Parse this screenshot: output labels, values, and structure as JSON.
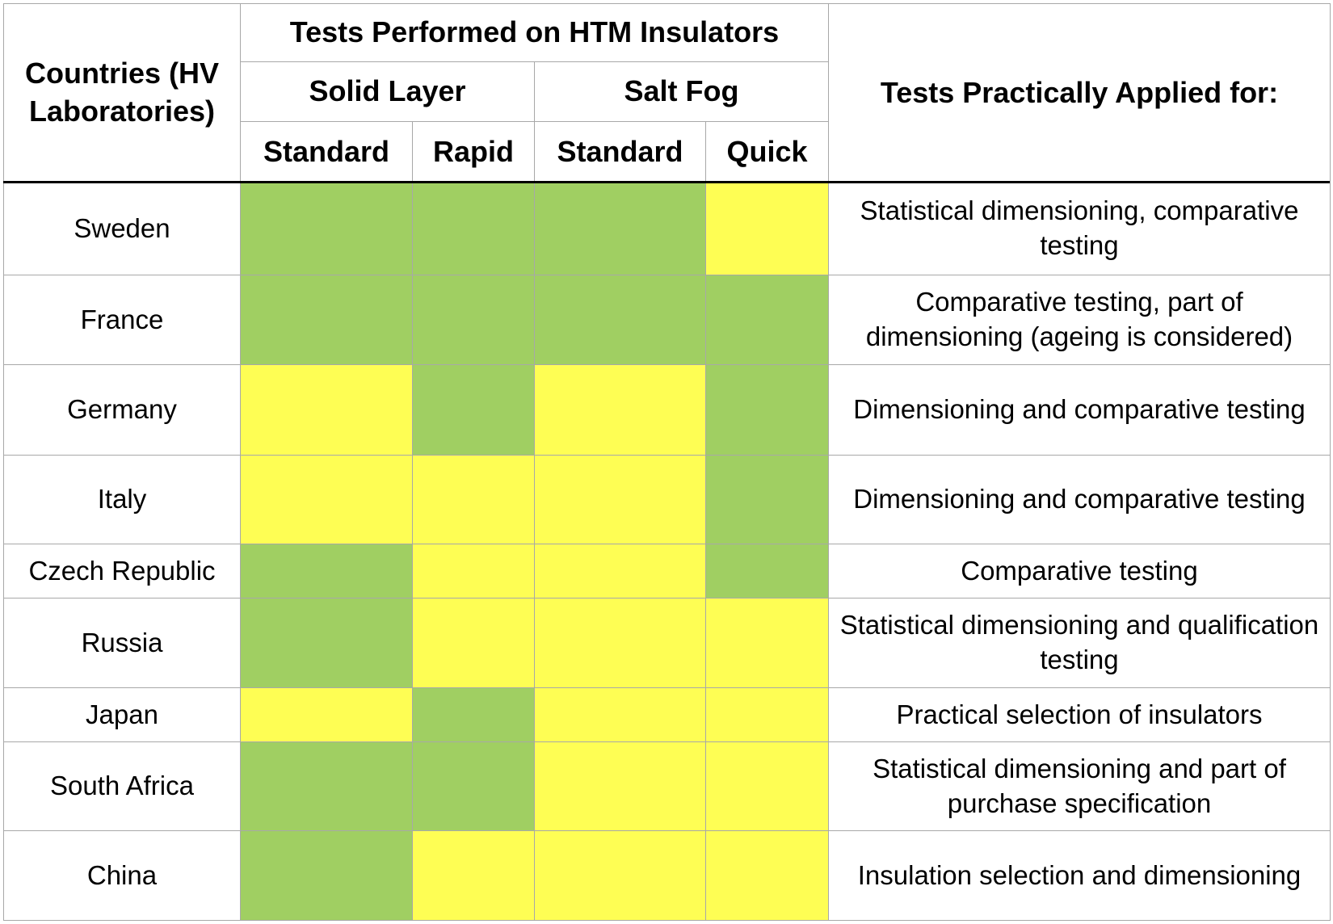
{
  "table": {
    "header": {
      "countries": "Countries (HV Laboratories)",
      "tests_performed": "Tests Performed on HTM Insulators",
      "solid_layer": "Solid Layer",
      "salt_fog": "Salt Fog",
      "subcolumns": [
        "Standard",
        "Rapid",
        "Standard",
        "Quick"
      ],
      "applied": "Tests Practically Applied for:"
    },
    "rows": [
      {
        "country": "Sweden",
        "cell_colors": [
          "#a0cf62",
          "#a0cf62",
          "#a0cf62",
          "#fefe54"
        ],
        "applied": "Statistical dimensioning, comparative testing"
      },
      {
        "country": "France",
        "cell_colors": [
          "#a0cf62",
          "#a0cf62",
          "#a0cf62",
          "#a0cf62"
        ],
        "applied": "Comparative testing, part of dimensioning (ageing is considered)"
      },
      {
        "country": "Germany",
        "cell_colors": [
          "#fefe54",
          "#a0cf62",
          "#fefe54",
          "#a0cf62"
        ],
        "applied": "Dimensioning and comparative testing"
      },
      {
        "country": "Italy",
        "cell_colors": [
          "#fefe54",
          "#fefe54",
          "#fefe54",
          "#a0cf62"
        ],
        "applied": "Dimensioning and comparative testing"
      },
      {
        "country": "Czech Republic",
        "cell_colors": [
          "#a0cf62",
          "#fefe54",
          "#fefe54",
          "#a0cf62"
        ],
        "applied": "Comparative testing"
      },
      {
        "country": "Russia",
        "cell_colors": [
          "#a0cf62",
          "#fefe54",
          "#fefe54",
          "#fefe54"
        ],
        "applied": "Statistical dimensioning and qualification testing"
      },
      {
        "country": "Japan",
        "cell_colors": [
          "#fefe54",
          "#a0cf62",
          "#fefe54",
          "#fefe54"
        ],
        "applied": "Practical selection of insulators"
      },
      {
        "country": "South Africa",
        "cell_colors": [
          "#a0cf62",
          "#a0cf62",
          "#fefe54",
          "#fefe54"
        ],
        "applied": "Statistical dimensioning and part of purchase specification"
      },
      {
        "country": "China",
        "cell_colors": [
          "#a0cf62",
          "#fefe54",
          "#fefe54",
          "#fefe54"
        ],
        "applied": "Insulation selection and dimensioning"
      }
    ]
  }
}
